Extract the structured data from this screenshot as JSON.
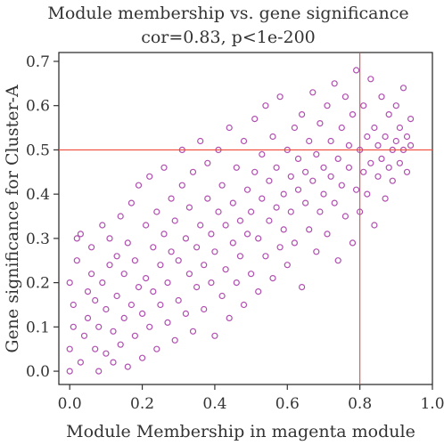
{
  "chart_data": {
    "type": "scatter",
    "title": "Module membership vs. gene significance",
    "subtitle": "cor=0.83, p<1e-200",
    "xlabel": "Module Membership in magenta module",
    "ylabel": "Gene significance for Cluster-A",
    "xlim": [
      -0.03,
      1.0
    ],
    "ylim": [
      -0.03,
      0.72
    ],
    "x_ticks": [
      0.0,
      0.2,
      0.4,
      0.6,
      0.8,
      1.0
    ],
    "x_tick_labels": [
      "0.0",
      "0.2",
      "0.4",
      "0.6",
      "0.8",
      "1.0"
    ],
    "y_ticks": [
      0.0,
      0.1,
      0.2,
      0.3,
      0.4,
      0.5,
      0.6,
      0.7
    ],
    "y_tick_labels": [
      "0.0",
      "0.1",
      "0.2",
      "0.3",
      "0.4",
      "0.5",
      "0.6",
      "0.7"
    ],
    "reference_lines": {
      "vertical_x": 0.8,
      "horizontal_y": 0.5
    },
    "grid": false,
    "legend": "none",
    "colors": {
      "points": "#b04fb0",
      "reference_lines": "#f04a3a",
      "axes": "#222222"
    },
    "marker": "open-circle",
    "series": [
      {
        "points": [
          [
            0.0,
            0.0
          ],
          [
            0.0,
            0.05
          ],
          [
            0.01,
            0.1
          ],
          [
            0.01,
            0.15
          ],
          [
            0.0,
            0.2
          ],
          [
            0.02,
            0.25
          ],
          [
            0.02,
            0.3
          ],
          [
            0.03,
            0.31
          ],
          [
            0.03,
            0.02
          ],
          [
            0.04,
            0.08
          ],
          [
            0.05,
            0.12
          ],
          [
            0.05,
            0.18
          ],
          [
            0.06,
            0.22
          ],
          [
            0.06,
            0.28
          ],
          [
            0.07,
            0.05
          ],
          [
            0.07,
            0.16
          ],
          [
            0.08,
            0.0
          ],
          [
            0.08,
            0.1
          ],
          [
            0.09,
            0.2
          ],
          [
            0.09,
            0.33
          ],
          [
            0.1,
            0.04
          ],
          [
            0.1,
            0.14
          ],
          [
            0.11,
            0.24
          ],
          [
            0.11,
            0.3
          ],
          [
            0.12,
            0.02
          ],
          [
            0.12,
            0.09
          ],
          [
            0.13,
            0.17
          ],
          [
            0.13,
            0.26
          ],
          [
            0.14,
            0.06
          ],
          [
            0.14,
            0.35
          ],
          [
            0.15,
            0.12
          ],
          [
            0.15,
            0.22
          ],
          [
            0.16,
            0.01
          ],
          [
            0.16,
            0.29
          ],
          [
            0.17,
            0.15
          ],
          [
            0.17,
            0.38
          ],
          [
            0.18,
            0.08
          ],
          [
            0.18,
            0.25
          ],
          [
            0.19,
            0.19
          ],
          [
            0.19,
            0.42
          ],
          [
            0.2,
            0.03
          ],
          [
            0.2,
            0.13
          ],
          [
            0.21,
            0.21
          ],
          [
            0.21,
            0.33
          ],
          [
            0.22,
            0.1
          ],
          [
            0.22,
            0.44
          ],
          [
            0.23,
            0.18
          ],
          [
            0.23,
            0.28
          ],
          [
            0.24,
            0.05
          ],
          [
            0.24,
            0.36
          ],
          [
            0.25,
            0.15
          ],
          [
            0.25,
            0.24
          ],
          [
            0.26,
            0.31
          ],
          [
            0.26,
            0.46
          ],
          [
            0.27,
            0.11
          ],
          [
            0.27,
            0.2
          ],
          [
            0.28,
            0.27
          ],
          [
            0.28,
            0.39
          ],
          [
            0.29,
            0.07
          ],
          [
            0.29,
            0.34
          ],
          [
            0.3,
            0.16
          ],
          [
            0.3,
            0.25
          ],
          [
            0.31,
            0.42
          ],
          [
            0.31,
            0.5
          ],
          [
            0.32,
            0.13
          ],
          [
            0.32,
            0.3
          ],
          [
            0.33,
            0.22
          ],
          [
            0.33,
            0.37
          ],
          [
            0.34,
            0.09
          ],
          [
            0.34,
            0.45
          ],
          [
            0.35,
            0.19
          ],
          [
            0.35,
            0.28
          ],
          [
            0.36,
            0.33
          ],
          [
            0.36,
            0.52
          ],
          [
            0.37,
            0.14
          ],
          [
            0.37,
            0.24
          ],
          [
            0.38,
            0.39
          ],
          [
            0.38,
            0.47
          ],
          [
            0.39,
            0.2
          ],
          [
            0.39,
            0.31
          ],
          [
            0.4,
            0.08
          ],
          [
            0.4,
            0.27
          ],
          [
            0.41,
            0.36
          ],
          [
            0.41,
            0.5
          ],
          [
            0.42,
            0.17
          ],
          [
            0.42,
            0.42
          ],
          [
            0.43,
            0.23
          ],
          [
            0.43,
            0.33
          ],
          [
            0.44,
            0.12
          ],
          [
            0.44,
            0.55
          ],
          [
            0.45,
            0.29
          ],
          [
            0.45,
            0.38
          ],
          [
            0.46,
            0.2
          ],
          [
            0.46,
            0.46
          ],
          [
            0.47,
            0.34
          ],
          [
            0.47,
            0.26
          ],
          [
            0.48,
            0.15
          ],
          [
            0.48,
            0.52
          ],
          [
            0.49,
            0.31
          ],
          [
            0.49,
            0.41
          ],
          [
            0.5,
            0.22
          ],
          [
            0.5,
            0.36
          ],
          [
            0.51,
            0.45
          ],
          [
            0.51,
            0.57
          ],
          [
            0.52,
            0.18
          ],
          [
            0.52,
            0.3
          ],
          [
            0.53,
            0.39
          ],
          [
            0.53,
            0.49
          ],
          [
            0.54,
            0.26
          ],
          [
            0.54,
            0.6
          ],
          [
            0.55,
            0.34
          ],
          [
            0.55,
            0.43
          ],
          [
            0.56,
            0.21
          ],
          [
            0.56,
            0.53
          ],
          [
            0.57,
            0.37
          ],
          [
            0.57,
            0.46
          ],
          [
            0.58,
            0.28
          ],
          [
            0.58,
            0.62
          ],
          [
            0.59,
            0.4
          ],
          [
            0.59,
            0.32
          ],
          [
            0.6,
            0.24
          ],
          [
            0.6,
            0.5
          ],
          [
            0.61,
            0.44
          ],
          [
            0.61,
            0.36
          ],
          [
            0.62,
            0.55
          ],
          [
            0.62,
            0.29
          ],
          [
            0.63,
            0.41
          ],
          [
            0.63,
            0.48
          ],
          [
            0.64,
            0.19
          ],
          [
            0.64,
            0.58
          ],
          [
            0.65,
            0.38
          ],
          [
            0.65,
            0.45
          ],
          [
            0.66,
            0.32
          ],
          [
            0.66,
            0.52
          ],
          [
            0.67,
            0.43
          ],
          [
            0.67,
            0.63
          ],
          [
            0.68,
            0.27
          ],
          [
            0.68,
            0.49
          ],
          [
            0.69,
            0.36
          ],
          [
            0.69,
            0.56
          ],
          [
            0.7,
            0.4
          ],
          [
            0.7,
            0.46
          ],
          [
            0.71,
            0.31
          ],
          [
            0.71,
            0.6
          ],
          [
            0.72,
            0.44
          ],
          [
            0.72,
            0.52
          ],
          [
            0.73,
            0.38
          ],
          [
            0.73,
            0.65
          ],
          [
            0.74,
            0.25
          ],
          [
            0.74,
            0.48
          ],
          [
            0.75,
            0.42
          ],
          [
            0.75,
            0.55
          ],
          [
            0.76,
            0.35
          ],
          [
            0.76,
            0.62
          ],
          [
            0.77,
            0.46
          ],
          [
            0.77,
            0.51
          ],
          [
            0.78,
            0.29
          ],
          [
            0.78,
            0.58
          ],
          [
            0.79,
            0.41
          ],
          [
            0.79,
            0.68
          ],
          [
            0.8,
            0.36
          ],
          [
            0.8,
            0.5
          ],
          [
            0.81,
            0.45
          ],
          [
            0.81,
            0.6
          ],
          [
            0.82,
            0.4
          ],
          [
            0.82,
            0.53
          ],
          [
            0.83,
            0.47
          ],
          [
            0.83,
            0.66
          ],
          [
            0.84,
            0.33
          ],
          [
            0.84,
            0.55
          ],
          [
            0.85,
            0.44
          ],
          [
            0.85,
            0.51
          ],
          [
            0.86,
            0.48
          ],
          [
            0.86,
            0.62
          ],
          [
            0.87,
            0.39
          ],
          [
            0.87,
            0.53
          ],
          [
            0.88,
            0.46
          ],
          [
            0.88,
            0.58
          ],
          [
            0.89,
            0.5
          ],
          [
            0.89,
            0.43
          ],
          [
            0.9,
            0.52
          ],
          [
            0.9,
            0.6
          ],
          [
            0.91,
            0.47
          ],
          [
            0.91,
            0.55
          ],
          [
            0.92,
            0.5
          ],
          [
            0.92,
            0.64
          ],
          [
            0.93,
            0.53
          ],
          [
            0.93,
            0.45
          ],
          [
            0.94,
            0.57
          ],
          [
            0.94,
            0.51
          ]
        ]
      }
    ]
  }
}
